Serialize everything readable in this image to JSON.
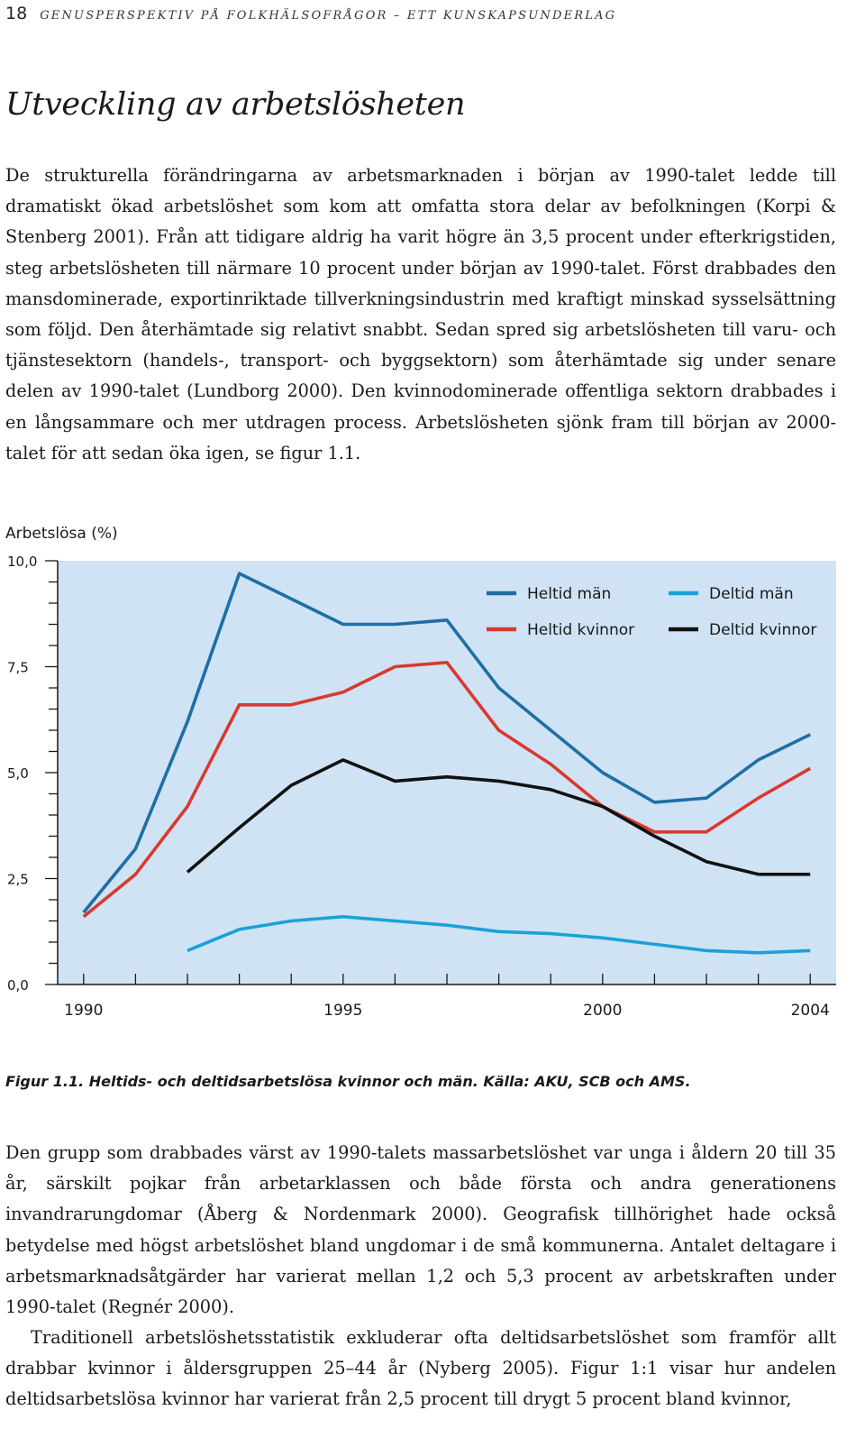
{
  "running_head": {
    "page_number": "18",
    "title": "Genusperspektiv på folkhälsofrågor – ett kunskapsunderlag"
  },
  "section_heading": "Utveckling av arbetslösheten",
  "paragraphs": [
    "De strukturella förändringarna av arbetsmarknaden i början av 1990-talet ledde till dramatiskt ökad arbetslöshet som kom att omfatta stora delar av befolkningen (Korpi & Stenberg 2001). Från att tidigare aldrig ha varit högre än 3,5 procent under efterkrigstiden, steg arbetslösheten till närmare 10 procent under början av 1990-talet. Först drabbades den mansdominerade, exportinriktade tillverkningsindustrin med kraftigt minskad sysselsättning som följd. Den återhämtade sig relativt snabbt. Sedan spred sig arbetslösheten till varu- och tjänstesektorn (handels-, transport- och byggsektorn) som återhämtade sig under senare delen av 1990-talet (Lundborg 2000). Den kvinnodominerade offentliga sektorn drabbades i en långsammare och mer utdragen process. Arbetslösheten sjönk fram till början av 2000-talet för att sedan öka igen, se figur 1.1.",
    "Den grupp som drabbades värst av 1990-talets massarbetslöshet var unga i åldern 20 till 35 år, särskilt pojkar från arbetarklassen och både första och andra generationens invandrarungdomar (Åberg & Nordenmark 2000). Geografisk tillhörighet hade också betydelse med högst arbetslöshet bland ungdomar i de små kommunerna. Antalet deltagare i arbetsmarknadsåtgärder har varierat mellan 1,2 och 5,3 procent av arbetskraften under 1990-talet (Regnér 2000).",
    "Traditionell arbetslöshetsstatistik exkluderar ofta deltidsarbetslöshet som framför allt drabbar kvinnor i åldersgruppen 25–44 år (Nyberg 2005). Figur 1:1 visar hur andelen deltidsarbetslösa kvinnor har varierat från 2,5 procent till drygt 5 procent bland kvinnor,"
  ],
  "chart_data": {
    "type": "line",
    "title": "",
    "ylabel": "Arbetslösa (%)",
    "xlabel": "",
    "x": [
      1990,
      1991,
      1992,
      1993,
      1994,
      1995,
      1996,
      1997,
      1998,
      1999,
      2000,
      2001,
      2002,
      2003,
      2004
    ],
    "xlim": [
      1989.5,
      2004.5
    ],
    "ylim": [
      0,
      10
    ],
    "x_ticks": [
      1990,
      1995,
      2000,
      2004
    ],
    "x_tick_labels": [
      "1990",
      "1995",
      "2000",
      "2004"
    ],
    "y_ticks": [
      0,
      2.5,
      5,
      7.5,
      10
    ],
    "y_tick_labels": [
      "0,0",
      "2,5",
      "5,0",
      "7,5",
      "10,0"
    ],
    "grid": false,
    "plot_background": "#cfe3f4",
    "legend_position": "top-right",
    "series": [
      {
        "name": "Heltid män",
        "color": "#1f6ea5",
        "values": [
          1.7,
          3.2,
          6.2,
          9.7,
          9.1,
          8.5,
          8.5,
          8.6,
          7.0,
          6.0,
          5.0,
          4.3,
          4.4,
          5.3,
          5.9
        ]
      },
      {
        "name": "Deltid män",
        "color": "#1ba1d9",
        "values": [
          null,
          null,
          0.8,
          1.3,
          1.5,
          1.6,
          1.5,
          1.4,
          1.25,
          1.2,
          1.1,
          0.95,
          0.8,
          0.75,
          0.8
        ]
      },
      {
        "name": "Heltid kvinnor",
        "color": "#d9392f",
        "values": [
          1.6,
          2.6,
          4.2,
          6.6,
          6.6,
          6.9,
          7.5,
          7.6,
          6.0,
          5.2,
          4.2,
          3.6,
          3.6,
          4.4,
          5.1
        ]
      },
      {
        "name": "Deltid kvinnor",
        "color": "#111111",
        "values": [
          null,
          null,
          2.65,
          3.7,
          4.7,
          5.3,
          4.8,
          4.9,
          4.8,
          4.6,
          4.2,
          3.5,
          2.9,
          2.6,
          2.6
        ]
      }
    ]
  },
  "figure_caption": "Figur 1.1. Heltids- och deltidsarbetslösa kvinnor och män. Källa: AKU, SCB och AMS."
}
